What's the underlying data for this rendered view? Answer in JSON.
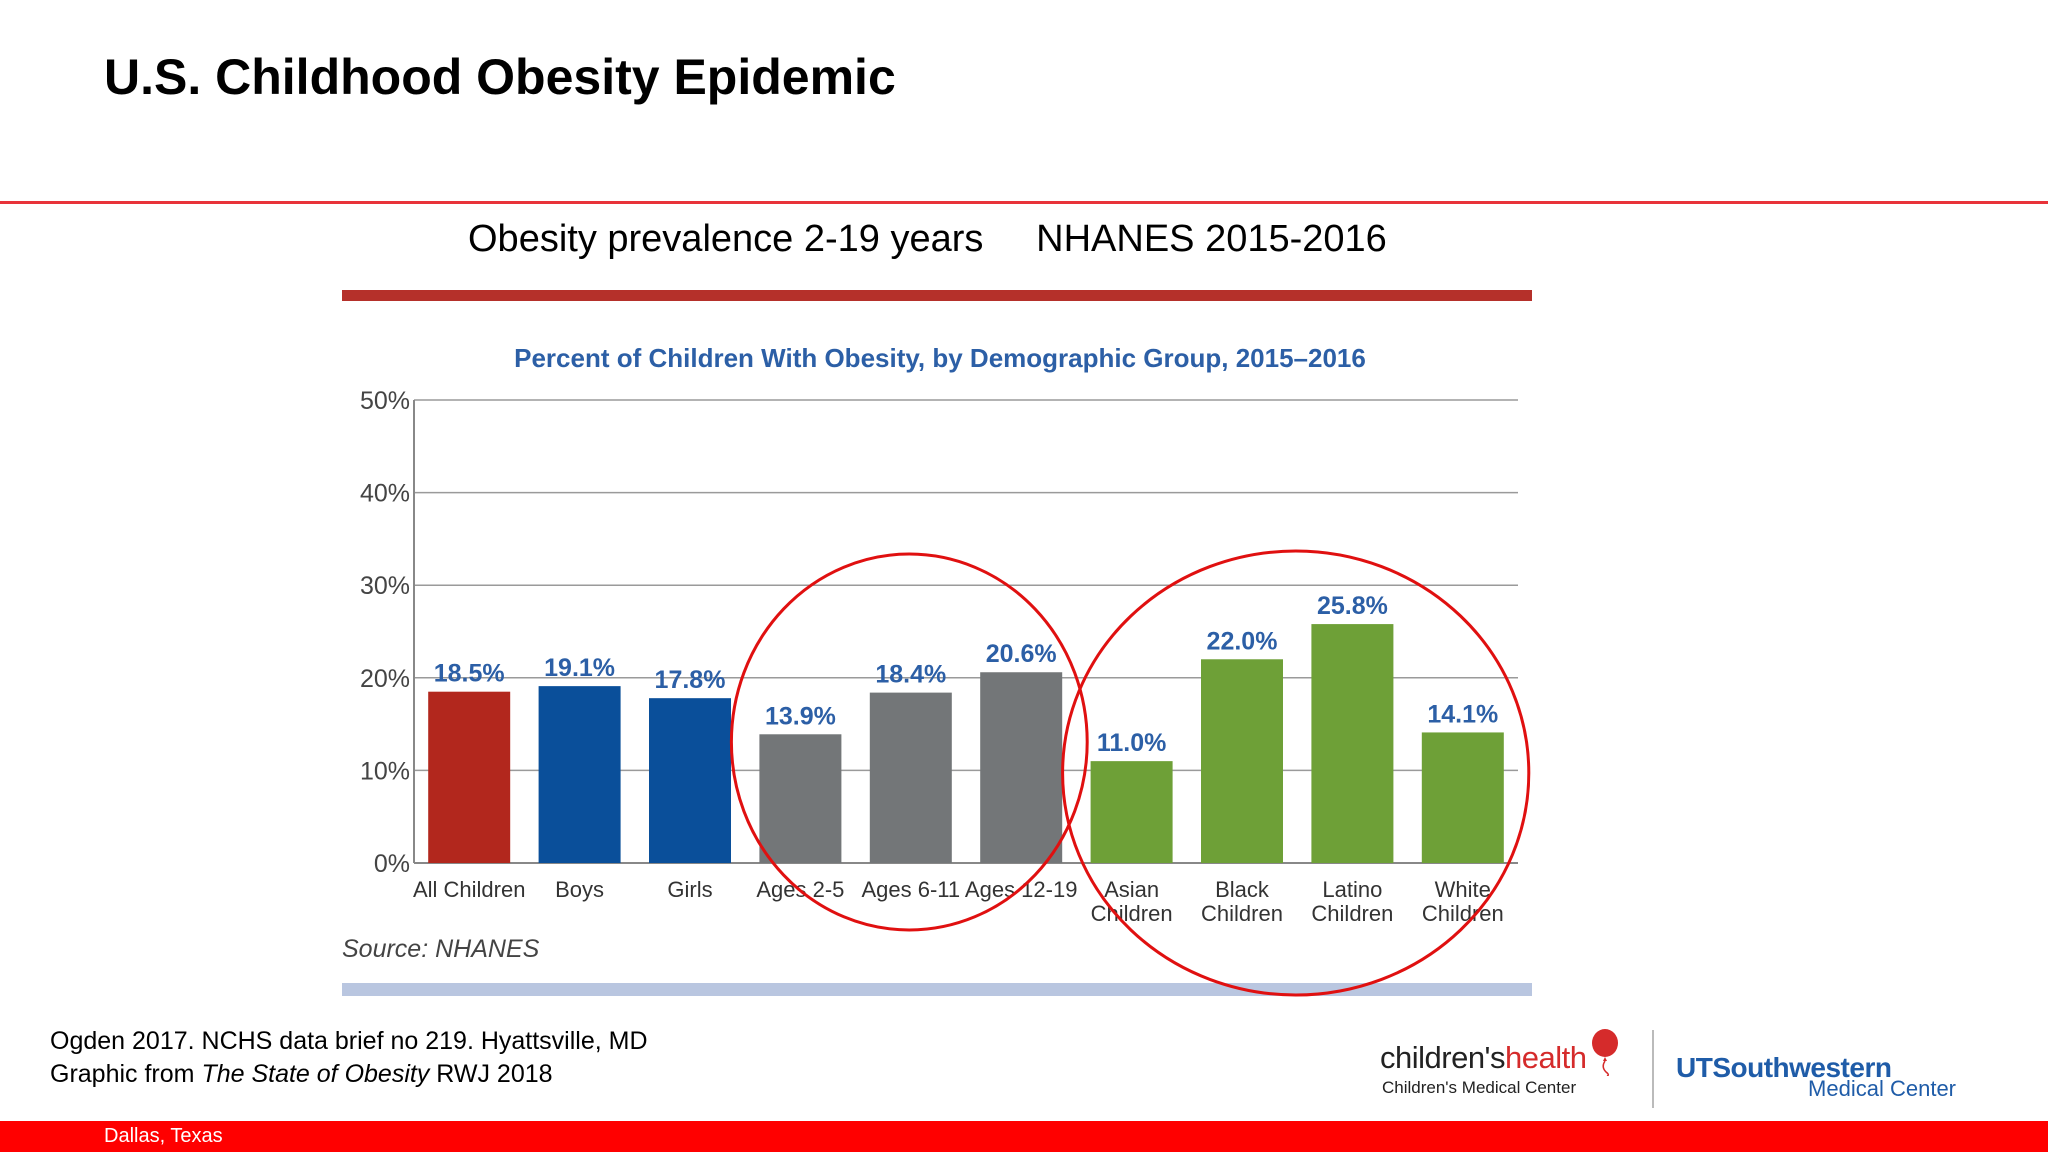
{
  "slide": {
    "title": "U.S. Childhood Obesity Epidemic",
    "subtitle": "Obesity prevalence 2-19 years     NHANES 2015-2016"
  },
  "chart_data": {
    "type": "bar",
    "title": "Percent of Children With Obesity, by Demographic Group, 2015–2016",
    "source": "Source: NHANES",
    "ylim": [
      0,
      50
    ],
    "yticks": [
      "0%",
      "10%",
      "20%",
      "30%",
      "40%",
      "50%"
    ],
    "grid": true,
    "categories": [
      [
        "All Children"
      ],
      [
        "Boys"
      ],
      [
        "Girls"
      ],
      [
        "Ages 2-5"
      ],
      [
        "Ages 6-11"
      ],
      [
        "Ages 12-19"
      ],
      [
        "Asian",
        "Children"
      ],
      [
        "Black",
        "Children"
      ],
      [
        "Latino",
        "Children"
      ],
      [
        "White",
        "Children"
      ]
    ],
    "values": [
      18.5,
      19.1,
      17.8,
      13.9,
      18.4,
      20.6,
      11.0,
      22.0,
      25.8,
      14.1
    ],
    "value_labels": [
      "18.5%",
      "19.1%",
      "17.8%",
      "13.9%",
      "18.4%",
      "20.6%",
      "11.0%",
      "22.0%",
      "25.8%",
      "14.1%"
    ],
    "bar_colors": [
      "#b2271d",
      "#0a4f9a",
      "#0a4f9a",
      "#737678",
      "#737678",
      "#737678",
      "#6ea037",
      "#6ea037",
      "#6ea037",
      "#6ea037"
    ],
    "label_color": "#2c5fa6",
    "highlight_groups": [
      [
        3,
        5
      ],
      [
        6,
        9
      ]
    ],
    "highlight_color": "#e01010"
  },
  "footnote": {
    "line1": "Ogden 2017. NCHS data brief no 219. Hyattsville, MD",
    "line2_pre": "Graphic from ",
    "line2_italic": "The State of Obesity",
    "line2_post": " RWJ 2018"
  },
  "logos": {
    "childrens_main_a": "children's",
    "childrens_main_b": "health",
    "childrens_sub": "Children's Medical Center",
    "ut_main": "UTSouthwestern",
    "ut_sub": "Medical Center"
  },
  "footer": {
    "location": "Dallas, Texas"
  },
  "colors": {
    "accent": "#e8333a",
    "footer_bar": "#ff0000",
    "chart_top_bar": "#b5302a",
    "chart_bottom_bar": "#b9c6e0"
  }
}
